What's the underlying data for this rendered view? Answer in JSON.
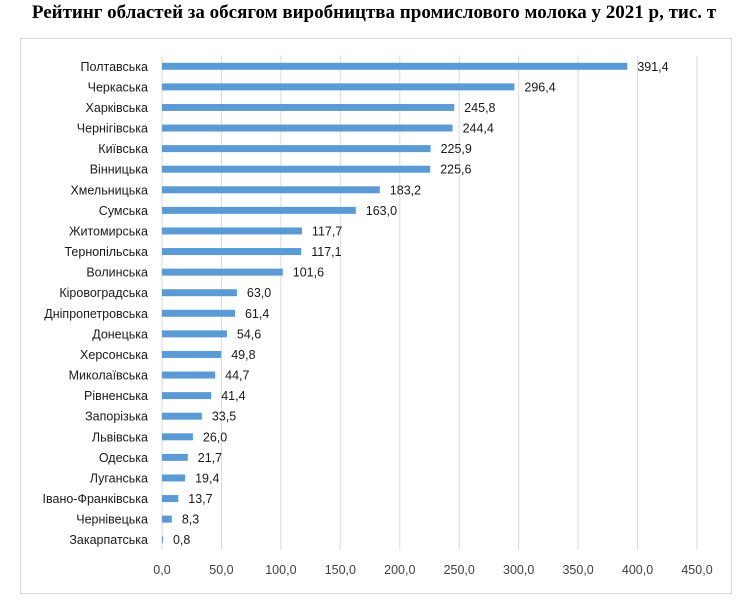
{
  "chart_data": {
    "type": "bar",
    "orientation": "horizontal",
    "title": "Рейтинг областей за обсягом виробництва промислового молока у 2021 р, тис. т",
    "categories": [
      "Полтавська",
      "Черкаська",
      "Харківська",
      "Чернігівська",
      "Київська",
      "Вінницька",
      "Хмельницька",
      "Сумська",
      "Житомирська",
      "Тернопільська",
      "Волинська",
      "Кіровоградська",
      "Дніпропетровська",
      "Донецька",
      "Херсонська",
      "Миколаївська",
      "Рівненська",
      "Запорізька",
      "Львівська",
      "Одеська",
      "Луганська",
      "Івано-Франківська",
      "Чернівецька",
      "Закарпатська"
    ],
    "values": [
      391.4,
      296.4,
      245.8,
      244.4,
      225.9,
      225.6,
      183.2,
      163.0,
      117.7,
      117.1,
      101.6,
      63.0,
      61.4,
      54.6,
      49.8,
      44.7,
      41.4,
      33.5,
      26.0,
      21.7,
      19.4,
      13.7,
      8.3,
      0.8
    ],
    "value_labels": [
      "391,4",
      "296,4",
      "245,8",
      "244,4",
      "225,9",
      "225,6",
      "183,2",
      "163,0",
      "117,7",
      "117,1",
      "101,6",
      "63,0",
      "61,4",
      "54,6",
      "49,8",
      "44,7",
      "41,4",
      "33,5",
      "26,0",
      "21,7",
      "19,4",
      "13,7",
      "8,3",
      "0,8"
    ],
    "xlim": [
      0,
      450
    ],
    "x_ticks": [
      0,
      50,
      100,
      150,
      200,
      250,
      300,
      350,
      400,
      450
    ],
    "x_tick_labels": [
      "0,0",
      "50,0",
      "100,0",
      "150,0",
      "200,0",
      "250,0",
      "300,0",
      "350,0",
      "400,0",
      "450,0"
    ],
    "grid": "vertical",
    "legend": "none",
    "bar_color": "#5b9bd5",
    "grid_color": "#d9d9d9"
  }
}
